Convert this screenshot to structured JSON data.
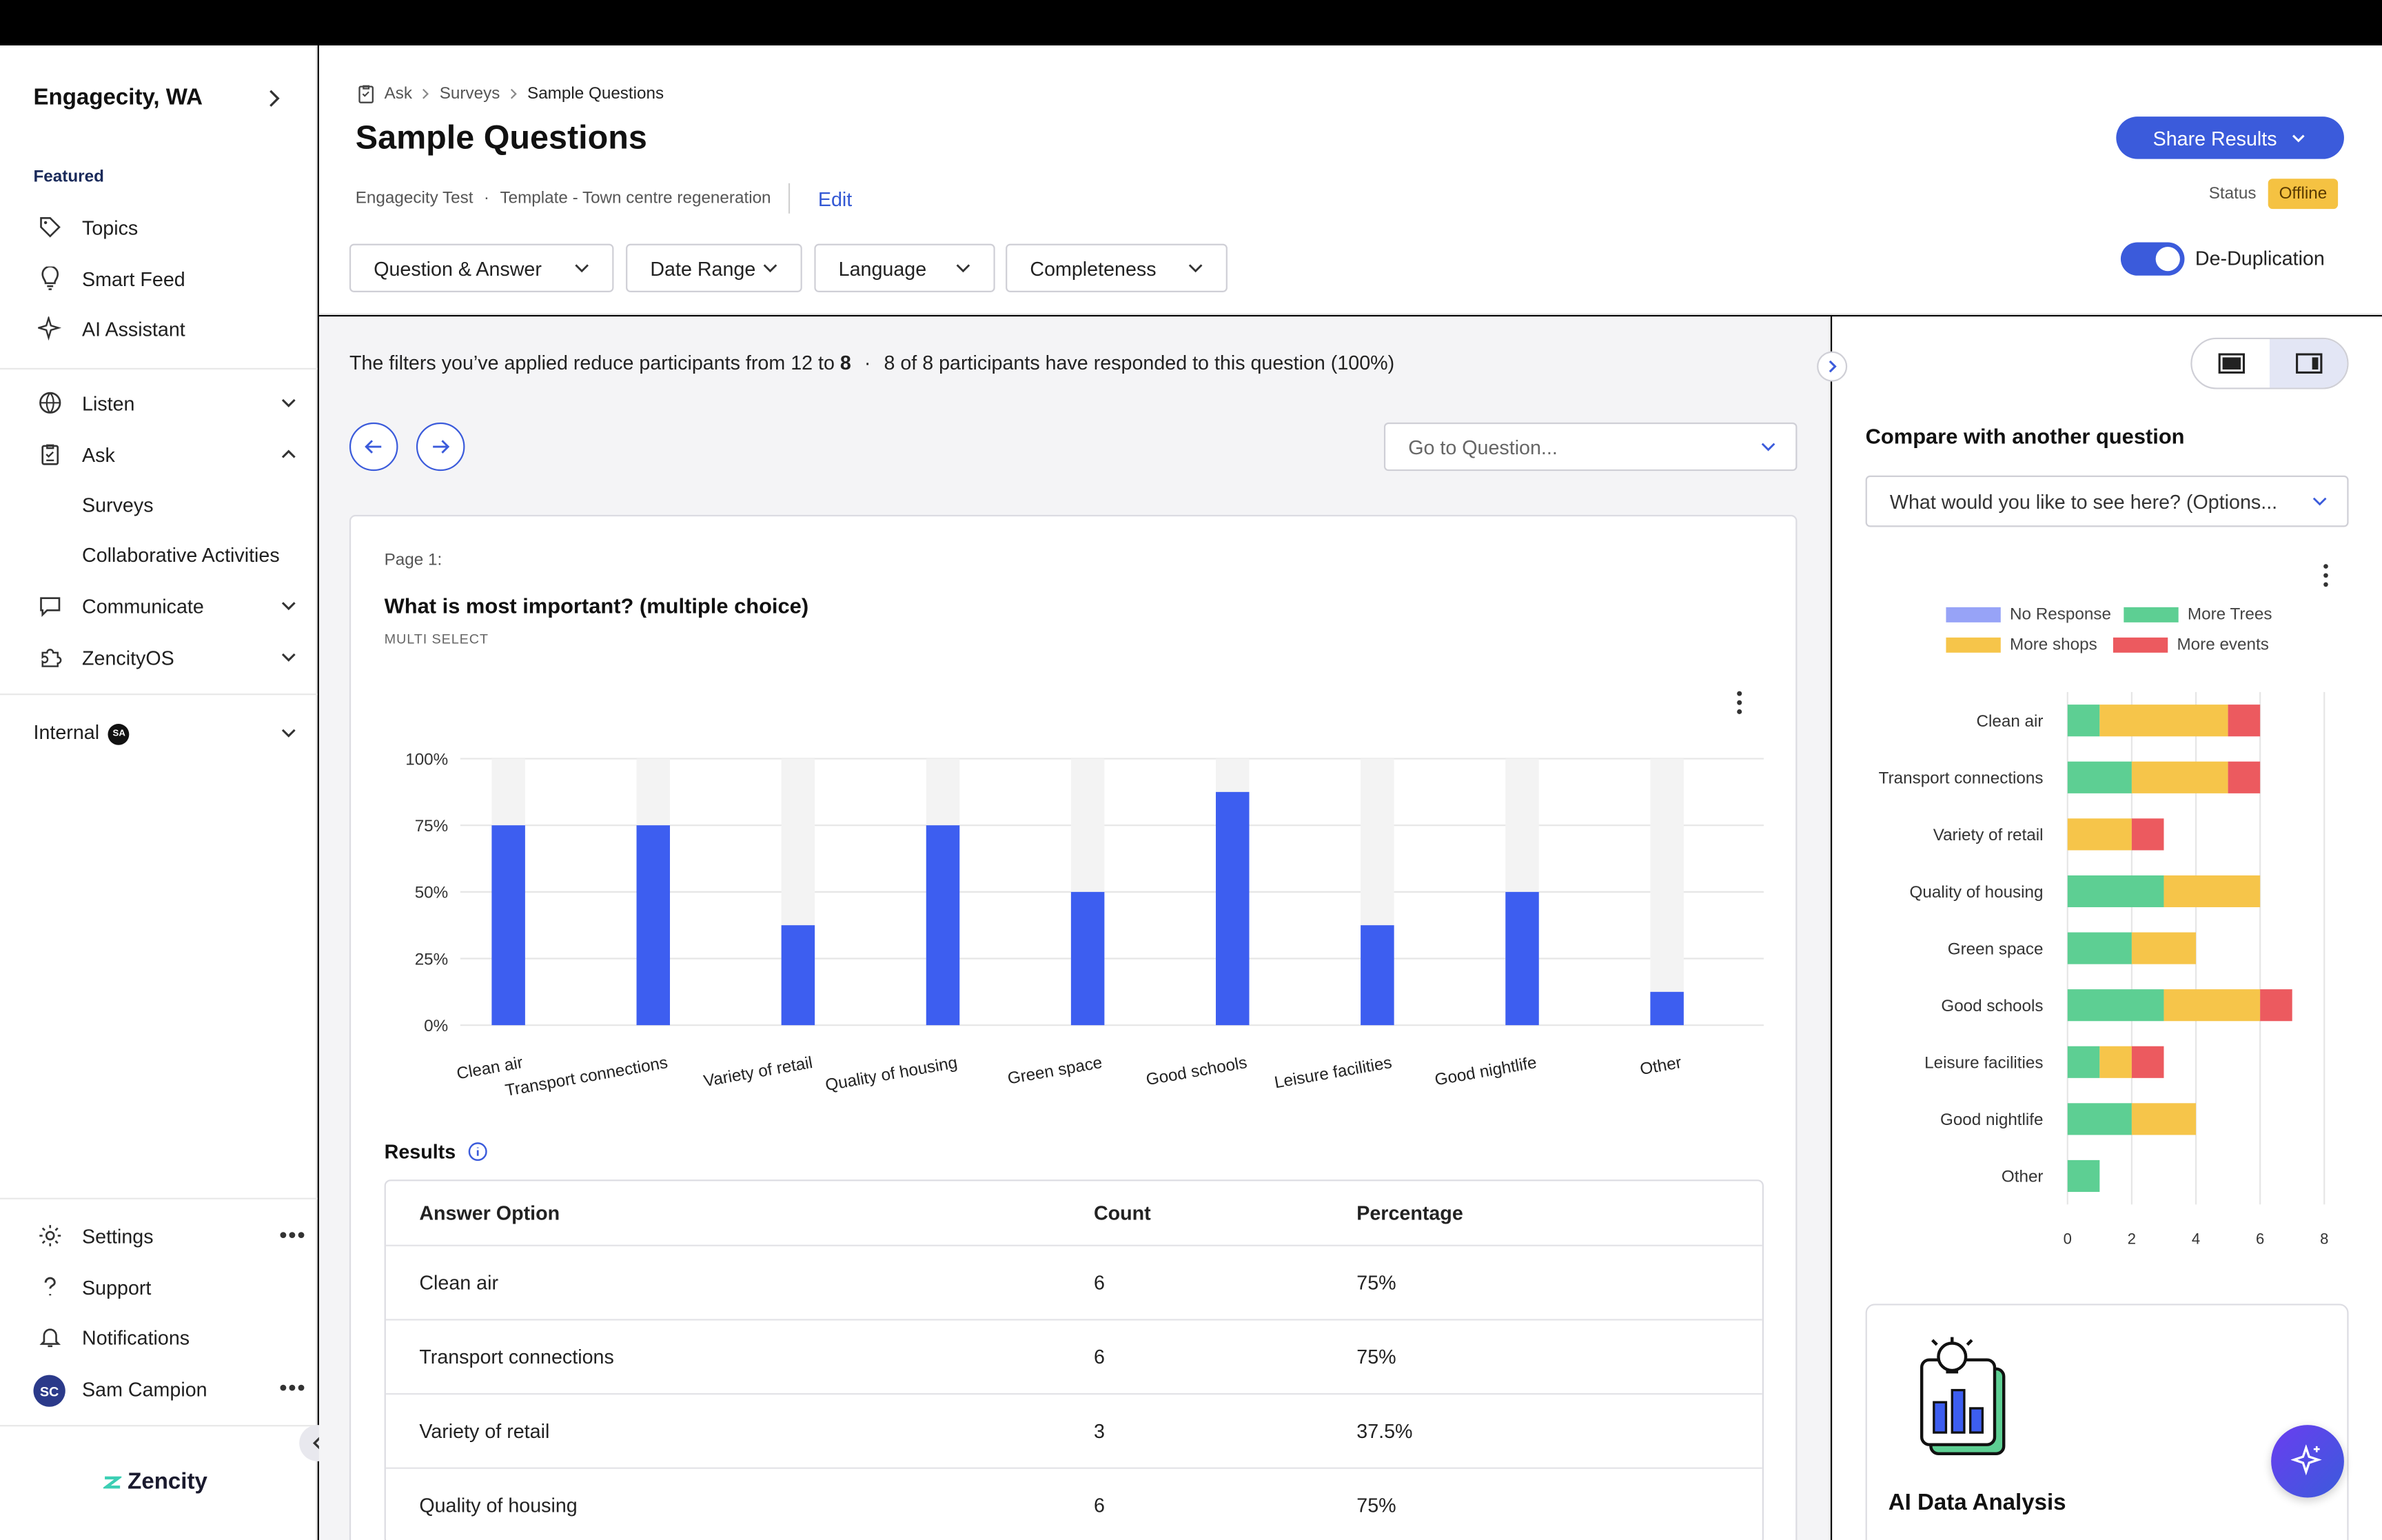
{
  "sidebar": {
    "org": "Engagecity, WA",
    "featured_label": "Featured",
    "featured": [
      {
        "label": "Topics",
        "icon": "tag-icon"
      },
      {
        "label": "Smart Feed",
        "icon": "lightbulb-icon"
      },
      {
        "label": "AI Assistant",
        "icon": "sparkle-icon"
      }
    ],
    "listen": "Listen",
    "ask": "Ask",
    "ask_subitems": [
      "Surveys",
      "Collaborative Activities"
    ],
    "communicate": "Communicate",
    "zencityos": "ZencityOS",
    "internal": "Internal",
    "internal_badge": "SA",
    "settings": "Settings",
    "support": "Support",
    "notifications": "Notifications",
    "user_name": "Sam Campion",
    "user_initials": "SC",
    "logo": "Zencity"
  },
  "header": {
    "breadcrumb": [
      "Ask",
      "Surveys",
      "Sample Questions"
    ],
    "title": "Sample Questions",
    "meta_org": "Engagecity Test",
    "meta_template": "Template - Town centre regeneration",
    "edit": "Edit",
    "share": "Share Results",
    "status_label": "Status",
    "status_value": "Offline",
    "filters": [
      "Question & Answer",
      "Date Range",
      "Language",
      "Completeness"
    ],
    "dedup_label": "De-Duplication"
  },
  "content": {
    "notice_pre": "The filters you’ve applied reduce participants from ",
    "notice_from": "12",
    "notice_to_word": " to ",
    "notice_to": "8",
    "notice_sep": "·",
    "notice_post": "8 of 8 participants have responded to this question (100%)",
    "goto_placeholder": "Go to Question...",
    "page_label": "Page 1:",
    "question": "What is most important? (multiple choice)",
    "question_type": "MULTI SELECT",
    "results_label": "Results",
    "table": {
      "headers": [
        "Answer Option",
        "Count",
        "Percentage"
      ],
      "rows": [
        [
          "Clean air",
          "6",
          "75%"
        ],
        [
          "Transport connections",
          "6",
          "75%"
        ],
        [
          "Variety of retail",
          "3",
          "37.5%"
        ],
        [
          "Quality of housing",
          "6",
          "75%"
        ]
      ]
    }
  },
  "right": {
    "compare_title": "Compare with another question",
    "compare_select": "What would you like to see here? (Options...",
    "ai_title": "AI Data Analysis"
  },
  "chart_data": [
    {
      "type": "bar",
      "categories": [
        "Clean air",
        "Transport connections",
        "Variety of retail",
        "Quality of housing",
        "Green space",
        "Good schools",
        "Leisure facilities",
        "Good nightlife",
        "Other"
      ],
      "values": [
        75,
        75,
        37.5,
        75,
        50,
        87.5,
        37.5,
        50,
        12.5
      ],
      "yticks": [
        "0%",
        "25%",
        "50%",
        "75%",
        "100%"
      ],
      "ylim": [
        0,
        100
      ],
      "color": "#3d5ef0",
      "track_color": "#f3f3f3"
    },
    {
      "type": "bar",
      "orientation": "horizontal",
      "stacked": true,
      "categories": [
        "Clean air",
        "Transport connections",
        "Variety of retail",
        "Quality of housing",
        "Green space",
        "Good schools",
        "Leisure facilities",
        "Good nightlife",
        "Other"
      ],
      "series": [
        {
          "name": "No Response",
          "color": "#97a3f7",
          "values": [
            0,
            0,
            0,
            0,
            0,
            0,
            0,
            0,
            0
          ]
        },
        {
          "name": "More Trees",
          "color": "#5dcf93",
          "values": [
            1,
            2,
            0,
            3,
            2,
            3,
            1,
            2,
            1
          ]
        },
        {
          "name": "More shops",
          "color": "#f6c54a",
          "values": [
            4,
            3,
            2,
            3,
            2,
            3,
            1,
            2,
            0
          ]
        },
        {
          "name": "More events",
          "color": "#ec5a5f",
          "values": [
            1,
            1,
            1,
            0,
            0,
            1,
            1,
            0,
            0
          ]
        }
      ],
      "xticks": [
        "0",
        "2",
        "4",
        "6",
        "8"
      ],
      "xlim": [
        0,
        8
      ],
      "legend": "top"
    }
  ]
}
